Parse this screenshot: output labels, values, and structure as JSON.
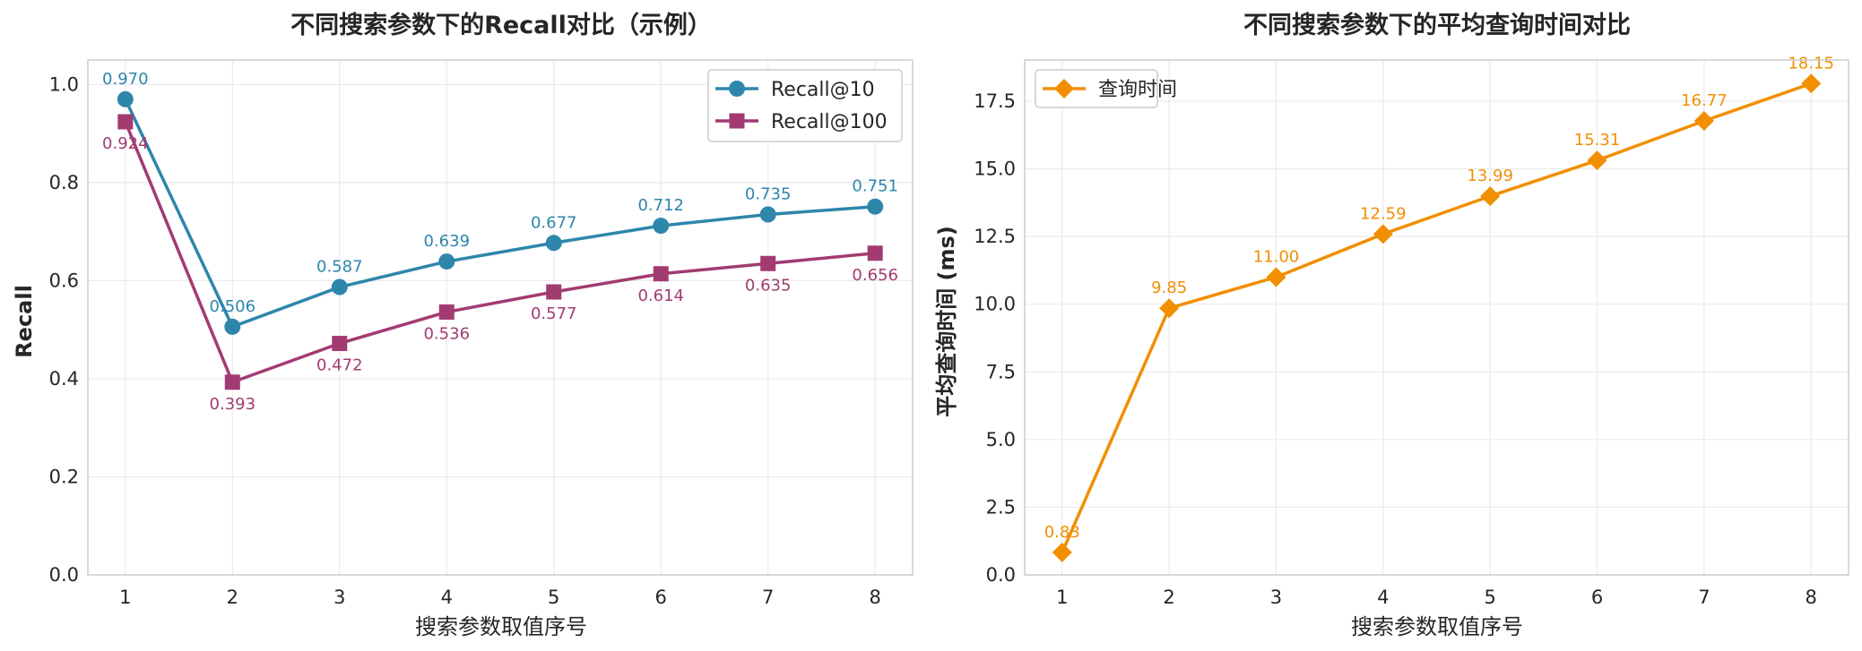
{
  "chart_data": [
    {
      "type": "line",
      "title": "不同搜索参数下的Recall对比（示例）",
      "xlabel": "搜索参数取值序号",
      "ylabel": "Recall",
      "x": [
        1,
        2,
        3,
        4,
        5,
        6,
        7,
        8
      ],
      "xlim": [
        0.65,
        8.35
      ],
      "ylim": [
        0,
        1.05
      ],
      "yticks": [
        0.0,
        0.2,
        0.4,
        0.6,
        0.8,
        1.0
      ],
      "ytick_decimals": 1,
      "label_decimals": 3,
      "grid": true,
      "legend": "top-right",
      "series": [
        {
          "name": "Recall@10",
          "color": "#2e86ab",
          "marker": "circle",
          "label_pos": "above",
          "values": [
            0.97,
            0.506,
            0.587,
            0.639,
            0.677,
            0.712,
            0.735,
            0.751
          ]
        },
        {
          "name": "Recall@100",
          "color": "#a23b72",
          "marker": "square",
          "label_pos": "below",
          "values": [
            0.924,
            0.393,
            0.472,
            0.536,
            0.577,
            0.614,
            0.635,
            0.656
          ]
        }
      ]
    },
    {
      "type": "line",
      "title": "不同搜索参数下的平均查询时间对比",
      "xlabel": "搜索参数取值序号",
      "ylabel": "平均查询时间 (ms)",
      "x": [
        1,
        2,
        3,
        4,
        5,
        6,
        7,
        8
      ],
      "xlim": [
        0.65,
        8.35
      ],
      "ylim": [
        0,
        19.02
      ],
      "yticks": [
        0.0,
        2.5,
        5.0,
        7.5,
        10.0,
        12.5,
        15.0,
        17.5
      ],
      "ytick_decimals": 1,
      "label_decimals": 2,
      "grid": true,
      "legend": "top-left",
      "series": [
        {
          "name": "查询时间",
          "color": "#f18f01",
          "marker": "diamond",
          "label_pos": "above",
          "values": [
            0.83,
            9.85,
            11.0,
            12.59,
            13.99,
            15.31,
            16.77,
            18.15
          ]
        }
      ]
    }
  ]
}
